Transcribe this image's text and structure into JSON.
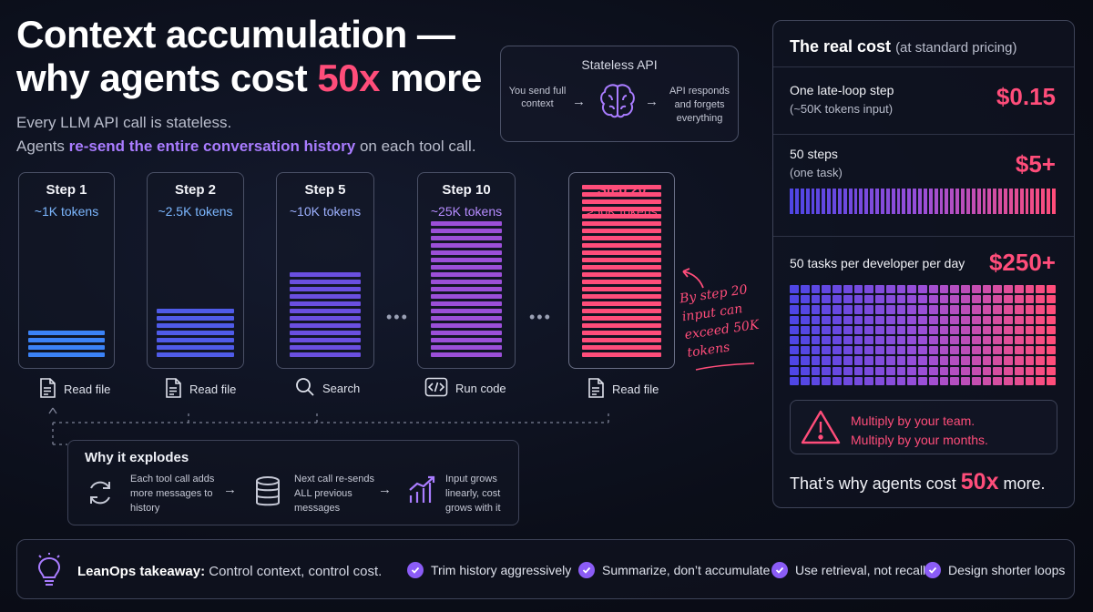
{
  "title": {
    "line1": "Context accumulation —",
    "line2_pre": "why agents cost ",
    "line2_hl": "50x",
    "line2_post": " more"
  },
  "subtitle": {
    "line1": "Every LLM API call is stateless.",
    "line2_pre": "Agents ",
    "line2_hl": "re-send the entire conversation history",
    "line2_post": " on each tool call."
  },
  "stateless_api": {
    "title": "Stateless API",
    "left_text": "You send full context",
    "right_text": "API responds and forgets everything",
    "icon": "brain-icon"
  },
  "steps": [
    {
      "name": "Step 1",
      "tokens": "~1K tokens",
      "bars": 4,
      "tool": "Read file",
      "tool_icon": "file-icon",
      "color": "#3b82f6"
    },
    {
      "name": "Step 2",
      "tokens": "~2.5K tokens",
      "bars": 7,
      "tool": "Read file",
      "tool_icon": "file-icon",
      "color": "#4f5be8"
    },
    {
      "name": "Step 5",
      "tokens": "~10K tokens",
      "bars": 12,
      "tool": "Search",
      "tool_icon": "search-icon",
      "color": "#6a4fe0"
    },
    {
      "name": "Step 10",
      "tokens": "~25K tokens",
      "bars": 19,
      "tool": "Run code",
      "tool_icon": "code-icon",
      "color": "#9b4fd8"
    },
    {
      "name": "Step 20",
      "tokens": ">50K tokens",
      "bars": 24,
      "tool": "Read file",
      "tool_icon": "file-icon",
      "color": "#ff4d7a"
    }
  ],
  "dots": "•••",
  "annotation": "By step 20 input can exceed 50K tokens",
  "why": {
    "title": "Why it explodes",
    "items": [
      {
        "text": "Each tool call adds more messages to history",
        "icon": "cycle-icon"
      },
      {
        "text": "Next call re-sends ALL previous messages",
        "icon": "database-icon"
      },
      {
        "text": "Input grows linearly, cost grows with it",
        "icon": "growth-chart-icon"
      }
    ],
    "arrow": "→"
  },
  "real_cost": {
    "title": "The real cost",
    "title_note": "(at standard pricing)",
    "rows": [
      {
        "label": "One late-loop step",
        "sub": "(~50K tokens input)",
        "value": "$0.15"
      },
      {
        "label": "50 steps",
        "sub": "(one task)",
        "value": "$5+"
      },
      {
        "label": "50 tasks per developer per day",
        "sub": "",
        "value": "$250+"
      }
    ],
    "warning_line1": "Multiply by your team.",
    "warning_line2": "Multiply by your months.",
    "foot_pre": "That’s why agents cost ",
    "foot_hl": "50x",
    "foot_post": " more.",
    "grid_cells_one_task": 50,
    "grid_rows": 10,
    "grid_cols": 25
  },
  "takeaway": {
    "label": "LeanOps takeaway:",
    "text": "Control context, control cost.",
    "items": [
      "Trim history aggressively",
      "Summarize, don’t accumulate",
      "Use retrieval, not recall",
      "Design shorter loops"
    ]
  },
  "colors": {
    "accent": "#ff4d7a",
    "purple": "#a97cff",
    "blue": "#3b82f6"
  }
}
